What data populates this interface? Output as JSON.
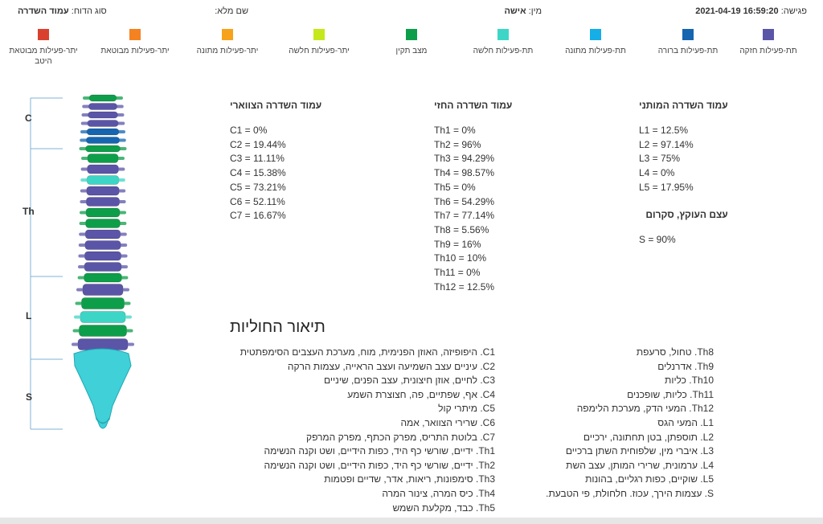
{
  "header": {
    "session_label": "פגישה:",
    "session_value": "2021-04-19 16:59:20",
    "gender_label": "מין:",
    "gender_value": "אישה",
    "name_label": "שם מלא:",
    "name_value": "",
    "view_label": "סוג הדוח:",
    "view_value": "עמוד השדרה"
  },
  "legend": [
    {
      "label": "תת-פעילות חזקה",
      "color": "#5b55a8"
    },
    {
      "label": "תת-פעילות ברורה",
      "color": "#1565b0"
    },
    {
      "label": "תת-פעילות מתונה",
      "color": "#15aee6"
    },
    {
      "label": "תת-פעילות חלשה",
      "color": "#3dd6c6"
    },
    {
      "label": "מצב תקין",
      "color": "#0e9e4a"
    },
    {
      "label": "יתר-פעילות חלשה",
      "color": "#c4e81c"
    },
    {
      "label": "יתר-פעילות מתונה",
      "color": "#f7a21b"
    },
    {
      "label": "יתר-פעילות מבוטאת",
      "color": "#f58220"
    },
    {
      "label": "יתר-פעילות מבוטאת היטב",
      "color": "#d9412e"
    }
  ],
  "spine_regions": [
    "C",
    "Th",
    "L",
    "S"
  ],
  "cervical": {
    "title": "עמוד השדרה הצווארי",
    "values": [
      "C1 = 0%",
      "C2 = 19.44%",
      "C3 = 11.11%",
      "C4 = 15.38%",
      "C5 = 73.21%",
      "C6 = 52.11%",
      "C7 = 16.67%"
    ]
  },
  "thoracic": {
    "title": "עמוד השדרה החזי",
    "values": [
      "Th1 = 0%",
      "Th2 = 96%",
      "Th3 = 94.29%",
      "Th4 = 98.57%",
      "Th5 = 0%",
      "Th6 = 54.29%",
      "Th7 = 77.14%",
      "Th8 = 5.56%",
      "Th9 = 16%",
      "Th10 = 10%",
      "Th11 = 0%",
      "Th12 = 12.5%"
    ]
  },
  "lumbar": {
    "title": "עמוד השדרה המותני",
    "values": [
      "L1 = 12.5%",
      "L2 = 97.14%",
      "L3 = 75%",
      "L4 = 0%",
      "L5 = 17.95%"
    ]
  },
  "sacrum": {
    "title": "עצם העוקץ, סקרום",
    "values": [
      "S = 90%"
    ]
  },
  "disease": {
    "title": "תיאור החוליות",
    "left": [
      "C1. היפופיזה, האוזן הפנימית, מוח, מערכת העצבים הסימפתטית",
      "C2. עיניים עצב השמיעה ועצב הראייה, עצמות הרקה",
      "C3. לחיים, אוזן חיצונית, עצב הפנים, שיניים",
      "C4. אף, שפתיים, פה, חצוצרת השמע",
      "C5. מיתרי קול",
      "C6. שרירי הצוואר, אמה",
      "C7. בלוטת התריס, מפרק הכתף, מפרק המרפק",
      "Th1. ידיים, שורשי כף היד, כפות הידיים, ושט וקנה הנשימה",
      "Th2. ידיים, שורשי כף היד, כפות הידיים, ושט וקנה הנשימה",
      "Th3. סימפונות, ריאות, אדר, שדיים ופטמות",
      "Th4. כיס המרה, צינור המרה",
      "Th5. כבד, מקלעת השמש"
    ],
    "right": [
      "Th8. טחול, סרעפת",
      "Th9. אדרנלים",
      "Th10. כליות",
      "Th11. כליות, שופכנים",
      "Th12. המעי הדק, מערכת הלימפה",
      "L1. המעי הגס",
      "L2. תוספתן, בטן תחתונה, ירכיים",
      "L3. איברי מין, שלפוחית השתן ברכיים",
      "L4. ערמונית, שרירי המותן, עצב השת",
      "L5. שוקיים, כפות רגליים, בהונות",
      "S. עצמות הירך, עכוז. חלחולת, פי הטבעת."
    ]
  }
}
